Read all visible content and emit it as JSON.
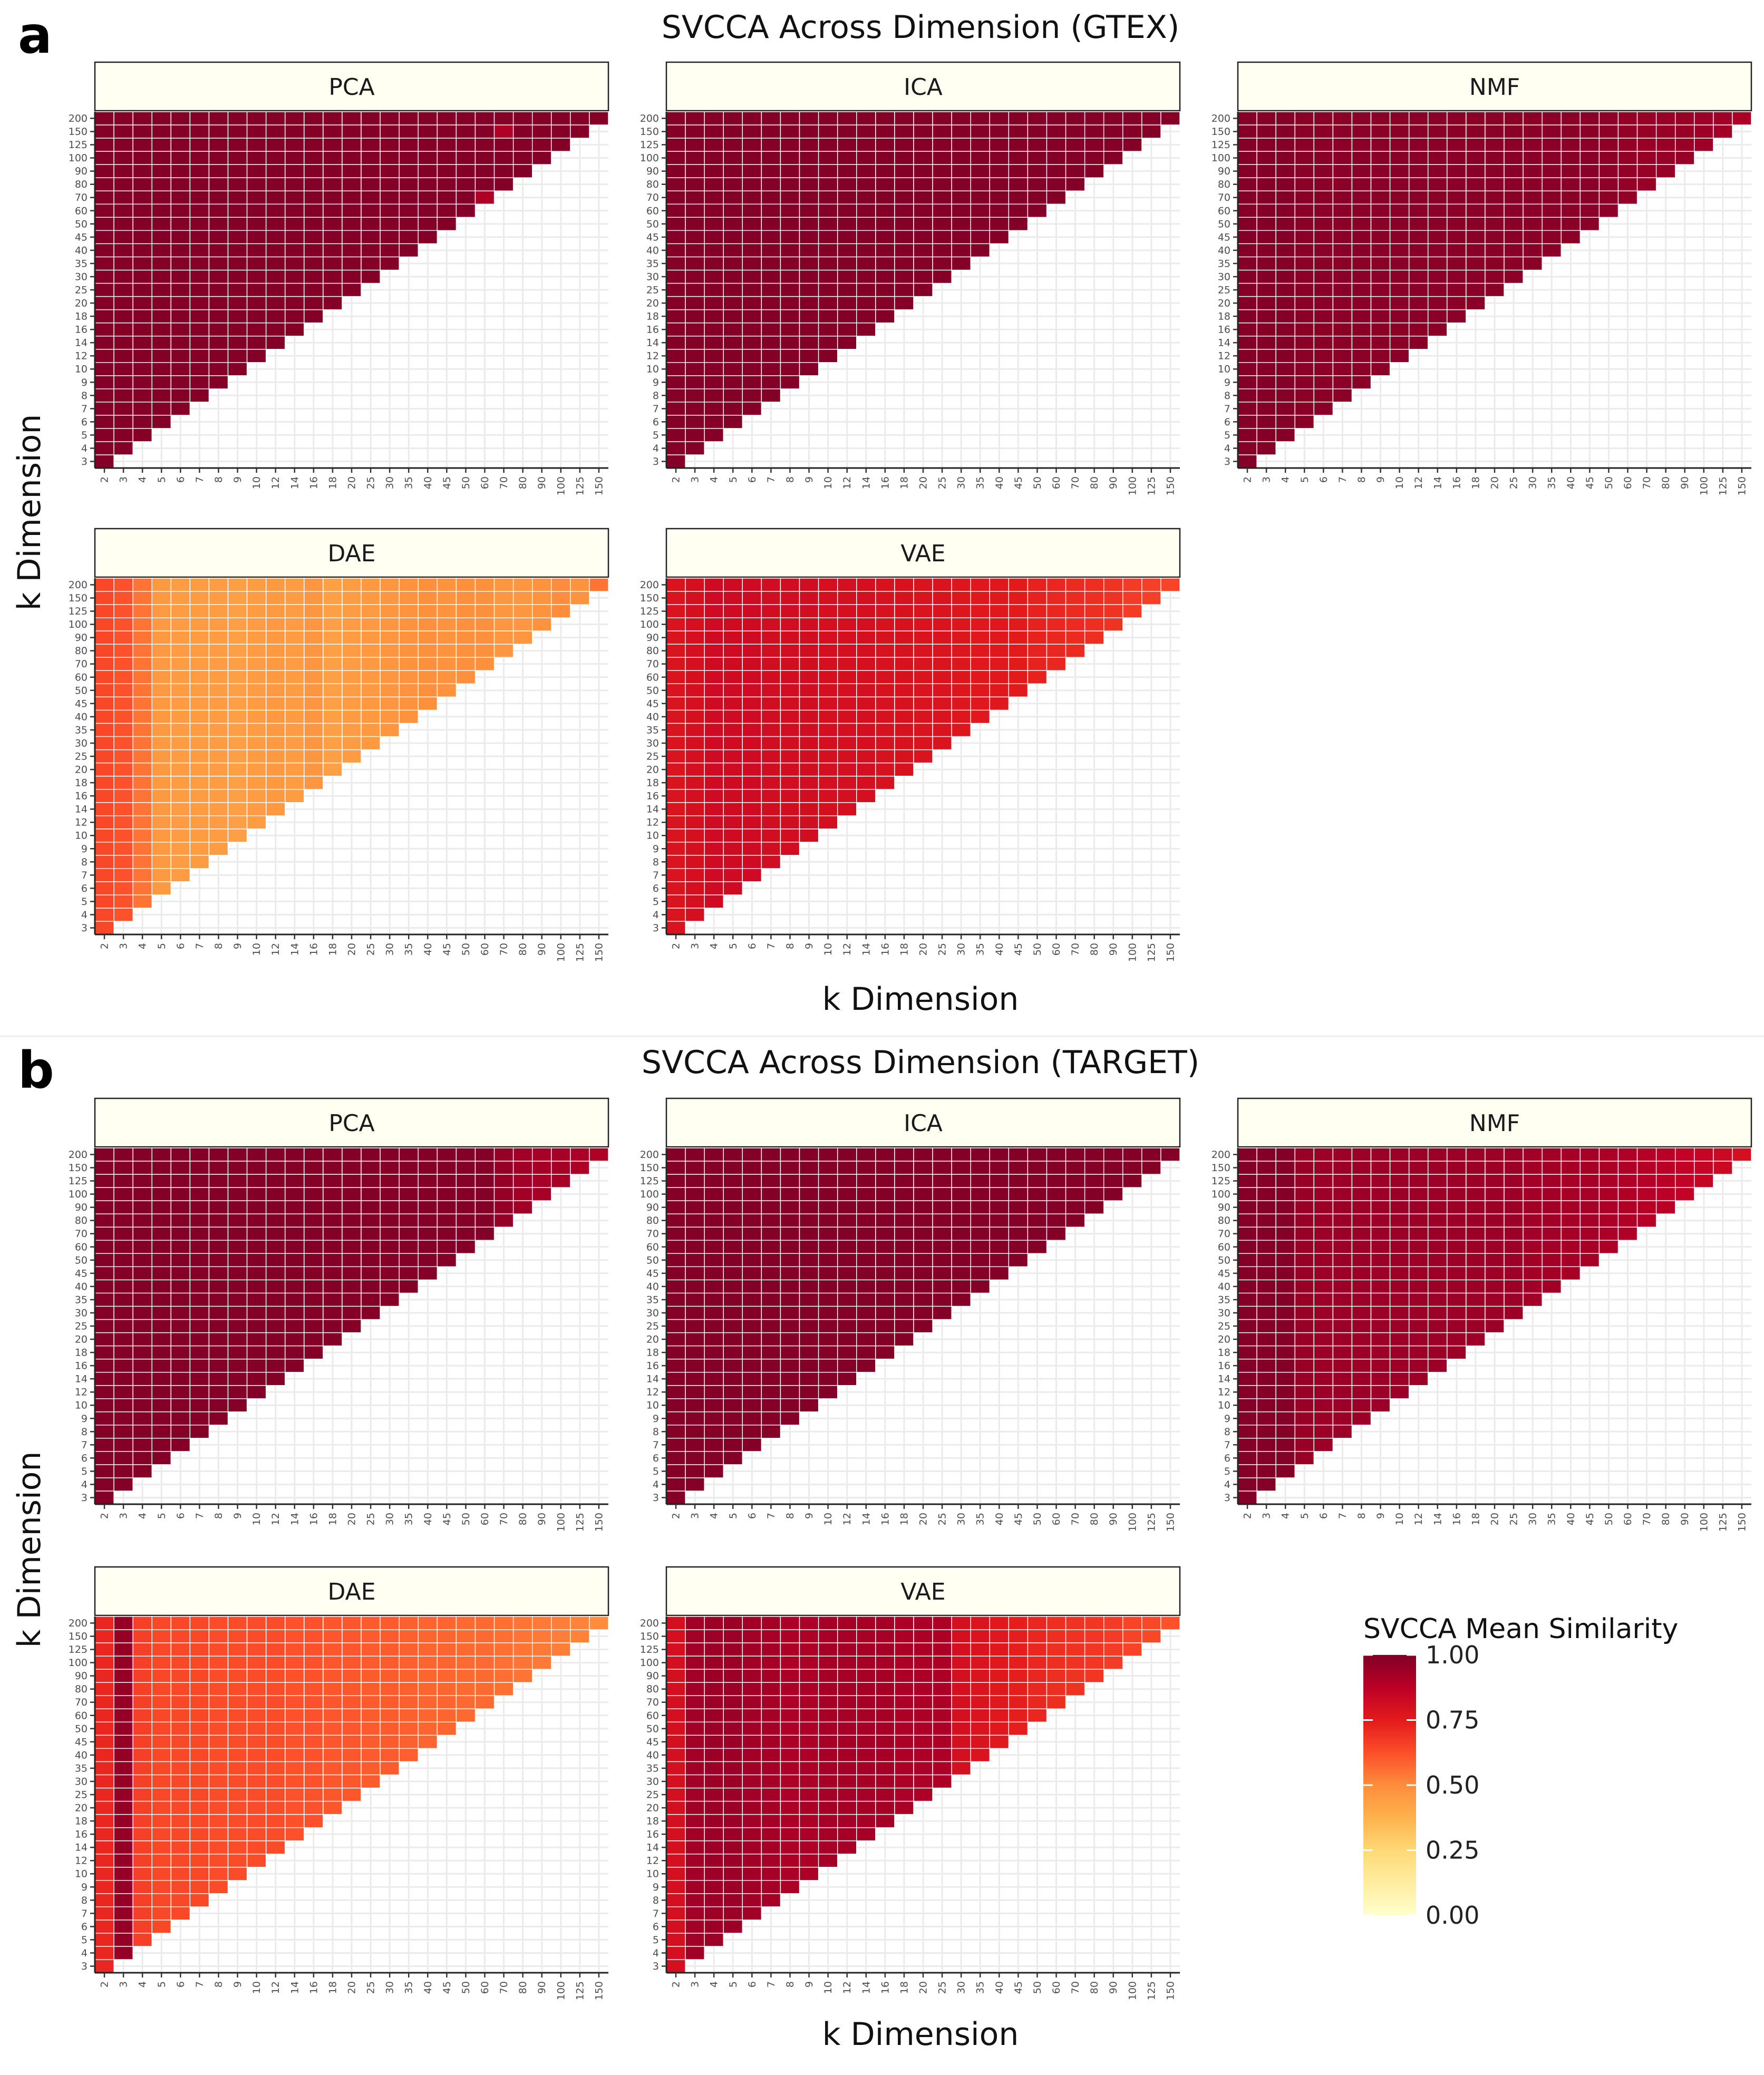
{
  "figure": {
    "panels": [
      {
        "letter": "a",
        "title": "SVCCA Across Dimension (GTEX)"
      },
      {
        "letter": "b",
        "title": "SVCCA Across Dimension (TARGET)"
      }
    ],
    "xlabel": "k Dimension",
    "ylabel": "k Dimension"
  },
  "legend": {
    "title": "SVCCA Mean Similarity",
    "ticks": [
      "1.00",
      "0.75",
      "0.50",
      "0.25",
      "0.00"
    ],
    "tick_values": [
      1.0,
      0.75,
      0.5,
      0.25,
      0.0
    ],
    "colors": [
      "#ffffcc",
      "#ffeda0",
      "#fed976",
      "#feb24c",
      "#fd8d3c",
      "#fc4e2a",
      "#e31a1c",
      "#bd0026",
      "#800026"
    ]
  },
  "chart_data": [
    {
      "type": "heatmap",
      "panel": "a",
      "dataset": "GTEX",
      "title": "SVCCA Across Dimension (GTEX)",
      "xlabel": "k Dimension",
      "ylabel": "k Dimension",
      "k_values": [
        2,
        3,
        4,
        5,
        6,
        7,
        8,
        9,
        10,
        12,
        14,
        16,
        18,
        20,
        25,
        30,
        35,
        40,
        45,
        50,
        60,
        70,
        80,
        90,
        100,
        125,
        150,
        200
      ],
      "x_ticks": [
        "2",
        "3",
        "4",
        "5",
        "6",
        "7",
        "8",
        "9",
        "10",
        "12",
        "14",
        "16",
        "18",
        "20",
        "25",
        "30",
        "35",
        "40",
        "45",
        "50",
        "60",
        "70",
        "80",
        "90",
        "100",
        "125",
        "150"
      ],
      "y_ticks": [
        "200",
        "150",
        "125",
        "100",
        "90",
        "80",
        "70",
        "60",
        "50",
        "45",
        "40",
        "35",
        "30",
        "25",
        "20",
        "18",
        "16",
        "14",
        "12",
        "10",
        "9",
        "8",
        "7",
        "6",
        "5",
        "4",
        "3"
      ],
      "value_range": [
        0,
        1
      ],
      "cells": "lower triangle: each column k_x has cells for every k_y greater than k_x",
      "models": [
        {
          "name": "PCA",
          "column_means": [
            0.99,
            0.99,
            0.99,
            0.99,
            0.99,
            0.99,
            0.99,
            0.99,
            0.99,
            0.99,
            0.99,
            0.99,
            0.99,
            0.99,
            0.99,
            0.99,
            0.99,
            0.99,
            0.99,
            0.99,
            0.99,
            0.99,
            0.99,
            0.99,
            0.99,
            0.99,
            0.99
          ],
          "outliers": [
            {
              "x": "70",
              "y": "150",
              "value": 0.9
            },
            {
              "x": "60",
              "y": "70",
              "value": 0.9
            }
          ]
        },
        {
          "name": "ICA",
          "column_means": [
            0.99,
            0.99,
            0.99,
            0.99,
            0.99,
            0.99,
            0.99,
            0.99,
            0.99,
            0.99,
            0.99,
            0.99,
            0.99,
            0.99,
            0.99,
            0.99,
            0.99,
            0.99,
            0.99,
            0.99,
            0.99,
            0.99,
            0.99,
            0.99,
            0.99,
            0.99,
            0.99
          ],
          "outliers": []
        },
        {
          "name": "NMF",
          "column_means": [
            0.99,
            0.99,
            0.99,
            0.98,
            0.98,
            0.98,
            0.98,
            0.98,
            0.98,
            0.98,
            0.98,
            0.98,
            0.98,
            0.98,
            0.98,
            0.98,
            0.98,
            0.98,
            0.98,
            0.97,
            0.96,
            0.95,
            0.95,
            0.95,
            0.94,
            0.93,
            0.91
          ],
          "outliers": []
        },
        {
          "name": "DAE",
          "column_means": [
            0.64,
            0.62,
            0.55,
            0.46,
            0.45,
            0.45,
            0.45,
            0.44,
            0.45,
            0.46,
            0.45,
            0.47,
            0.44,
            0.45,
            0.46,
            0.47,
            0.48,
            0.49,
            0.48,
            0.49,
            0.49,
            0.47,
            0.47,
            0.48,
            0.5,
            0.48,
            0.55
          ],
          "outliers": []
        },
        {
          "name": "VAE",
          "column_means": [
            0.78,
            0.8,
            0.82,
            0.82,
            0.82,
            0.81,
            0.81,
            0.81,
            0.8,
            0.8,
            0.8,
            0.79,
            0.79,
            0.78,
            0.78,
            0.77,
            0.76,
            0.76,
            0.75,
            0.73,
            0.72,
            0.71,
            0.7,
            0.69,
            0.67,
            0.66,
            0.65
          ],
          "outliers": []
        }
      ]
    },
    {
      "type": "heatmap",
      "panel": "b",
      "dataset": "TARGET",
      "title": "SVCCA Across Dimension (TARGET)",
      "xlabel": "k Dimension",
      "ylabel": "k Dimension",
      "k_values": [
        2,
        3,
        4,
        5,
        6,
        7,
        8,
        9,
        10,
        12,
        14,
        16,
        18,
        20,
        25,
        30,
        35,
        40,
        45,
        50,
        60,
        70,
        80,
        90,
        100,
        125,
        150,
        200
      ],
      "x_ticks": [
        "2",
        "3",
        "4",
        "5",
        "6",
        "7",
        "8",
        "9",
        "10",
        "12",
        "14",
        "16",
        "18",
        "20",
        "25",
        "30",
        "35",
        "40",
        "45",
        "50",
        "60",
        "70",
        "80",
        "90",
        "100",
        "125",
        "150"
      ],
      "y_ticks": [
        "200",
        "150",
        "125",
        "100",
        "90",
        "80",
        "70",
        "60",
        "50",
        "45",
        "40",
        "35",
        "30",
        "25",
        "20",
        "18",
        "16",
        "14",
        "12",
        "10",
        "9",
        "8",
        "7",
        "6",
        "5",
        "4",
        "3"
      ],
      "value_range": [
        0,
        1
      ],
      "cells": "lower triangle: each column k_x has cells for every k_y greater than k_x",
      "models": [
        {
          "name": "PCA",
          "column_means": [
            0.99,
            0.99,
            0.99,
            0.99,
            0.99,
            0.99,
            0.99,
            0.99,
            0.99,
            0.99,
            0.99,
            0.99,
            0.99,
            0.99,
            0.99,
            0.99,
            0.99,
            0.99,
            0.99,
            0.99,
            0.99,
            0.96,
            0.93,
            0.92,
            0.92,
            0.91,
            0.9
          ],
          "outliers": []
        },
        {
          "name": "ICA",
          "column_means": [
            0.99,
            0.99,
            0.99,
            0.99,
            0.99,
            0.99,
            0.99,
            0.99,
            0.99,
            0.99,
            0.99,
            0.99,
            0.99,
            0.99,
            0.99,
            0.99,
            0.99,
            0.99,
            0.99,
            0.99,
            0.99,
            0.99,
            0.99,
            0.99,
            0.99,
            0.99,
            0.99
          ],
          "outliers": []
        },
        {
          "name": "NMF",
          "column_means": [
            0.99,
            0.99,
            0.99,
            0.95,
            0.94,
            0.94,
            0.94,
            0.94,
            0.94,
            0.94,
            0.94,
            0.94,
            0.94,
            0.94,
            0.94,
            0.93,
            0.93,
            0.92,
            0.92,
            0.91,
            0.9,
            0.89,
            0.88,
            0.86,
            0.85,
            0.83,
            0.8
          ],
          "outliers": []
        },
        {
          "name": "DAE",
          "column_means": [
            0.72,
            0.96,
            0.66,
            0.64,
            0.64,
            0.64,
            0.63,
            0.63,
            0.63,
            0.63,
            0.62,
            0.62,
            0.61,
            0.61,
            0.6,
            0.6,
            0.59,
            0.58,
            0.58,
            0.57,
            0.57,
            0.56,
            0.55,
            0.54,
            0.53,
            0.52,
            0.5
          ],
          "outliers": []
        },
        {
          "name": "VAE",
          "column_means": [
            0.8,
            0.93,
            0.94,
            0.94,
            0.93,
            0.92,
            0.91,
            0.91,
            0.92,
            0.92,
            0.92,
            0.92,
            0.91,
            0.91,
            0.91,
            0.8,
            0.78,
            0.76,
            0.74,
            0.72,
            0.7,
            0.69,
            0.68,
            0.67,
            0.65,
            0.64,
            0.62
          ],
          "outliers": []
        }
      ]
    }
  ]
}
